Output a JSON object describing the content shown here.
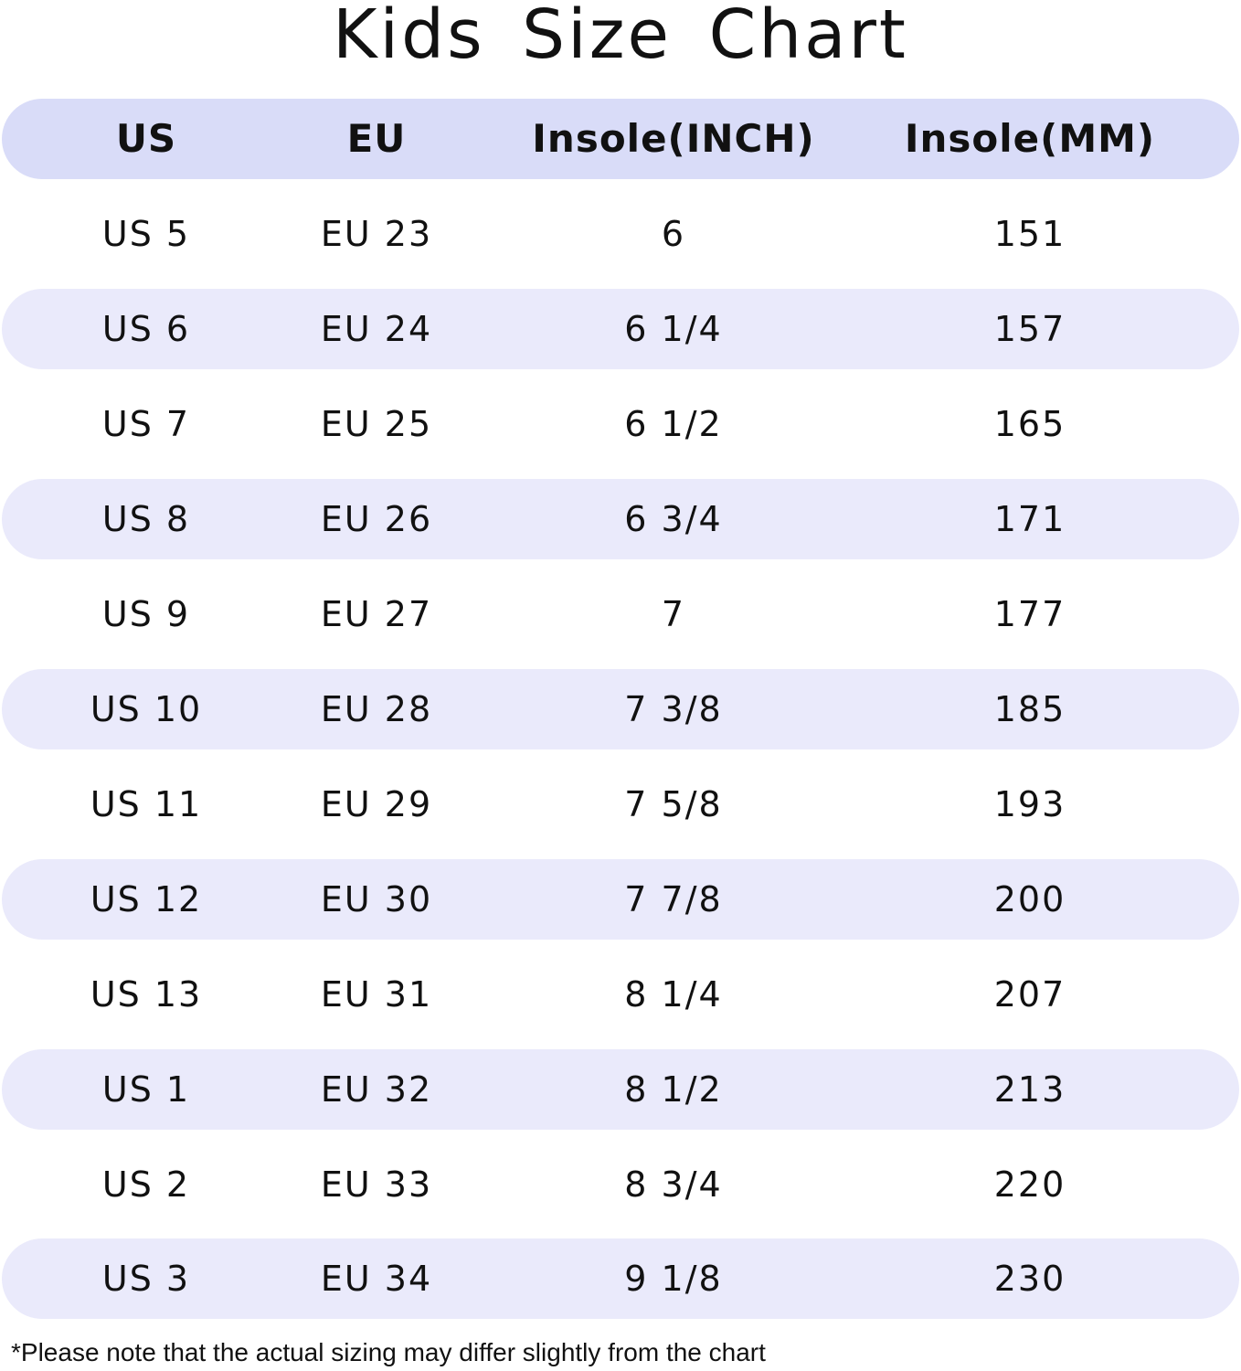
{
  "title": "Kids Size Chart",
  "table": {
    "headers": [
      "US",
      "EU",
      "Insole(INCH)",
      "Insole(MM)"
    ],
    "rows": [
      [
        "US 5",
        "EU 23",
        "6",
        "151"
      ],
      [
        "US 6",
        "EU 24",
        "6 1/4",
        "157"
      ],
      [
        "US 7",
        "EU 25",
        "6 1/2",
        "165"
      ],
      [
        "US 8",
        "EU 26",
        "6 3/4",
        "171"
      ],
      [
        "US 9",
        "EU 27",
        "7",
        "177"
      ],
      [
        "US 10",
        "EU 28",
        "7 3/8",
        "185"
      ],
      [
        "US 11",
        "EU 29",
        "7 5/8",
        "193"
      ],
      [
        "US 12",
        "EU 30",
        "7 7/8",
        "200"
      ],
      [
        "US 13",
        "EU 31",
        "8 1/4",
        "207"
      ],
      [
        "US 1",
        "EU 32",
        "8 1/2",
        "213"
      ],
      [
        "US 2",
        "EU 33",
        "8 3/4",
        "220"
      ],
      [
        "US 3",
        "EU 34",
        "9 1/8",
        "230"
      ]
    ]
  },
  "footnote": "*Please note that the actual sizing may differ slightly from the chart",
  "colors": {
    "header_band": "#d9dcf8",
    "row_band": "#eaeafb",
    "background": "#ffffff",
    "text": "#111111"
  }
}
